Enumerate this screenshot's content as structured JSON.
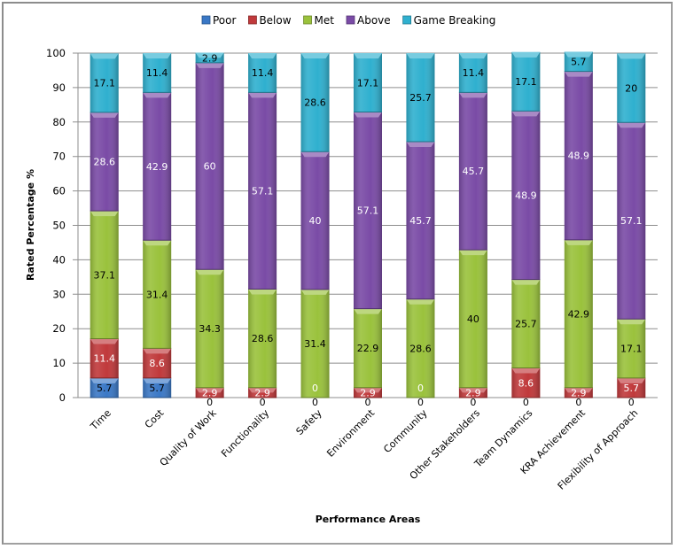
{
  "chart_data": {
    "type": "bar",
    "stacked": true,
    "title": "",
    "xlabel": "Performance Areas",
    "ylabel": "Rated Percentage %",
    "ylim": [
      0,
      100
    ],
    "yticks": [
      0,
      10,
      20,
      30,
      40,
      50,
      60,
      70,
      80,
      90,
      100
    ],
    "grid": true,
    "legend_position": "top-center",
    "categories": [
      "Time",
      "Cost",
      "Quality of Work",
      "Functionality",
      "Safety",
      "Environment",
      "Community",
      "Other Stakeholders",
      "Team Dynamics",
      "KRA Achievement",
      "Flexibility of Approach"
    ],
    "series": [
      {
        "name": "Poor",
        "color": "#3a78c6",
        "label_color": "#000000",
        "values": [
          5.7,
          5.7,
          0,
          0,
          0,
          0,
          0,
          0,
          0,
          0,
          0
        ]
      },
      {
        "name": "Below",
        "color": "#c0393b",
        "label_color": "#ffffff",
        "values": [
          11.4,
          8.6,
          2.9,
          2.9,
          0,
          2.9,
          0,
          2.9,
          8.6,
          2.9,
          5.7
        ]
      },
      {
        "name": "Met",
        "color": "#9ac23c",
        "label_color": "#000000",
        "values": [
          37.1,
          31.4,
          34.3,
          28.6,
          31.4,
          22.9,
          28.6,
          40,
          25.7,
          42.9,
          17.1
        ]
      },
      {
        "name": "Above",
        "color": "#7a4ba6",
        "label_color": "#ffffff",
        "values": [
          28.6,
          42.9,
          60,
          57.1,
          40,
          57.1,
          45.7,
          45.7,
          48.9,
          48.9,
          57.1
        ]
      },
      {
        "name": "Game Breaking",
        "color": "#2fb0cf",
        "label_color": "#000000",
        "values": [
          17.1,
          11.4,
          2.9,
          11.4,
          28.6,
          17.1,
          25.7,
          11.4,
          17.1,
          5.7,
          20
        ]
      }
    ]
  }
}
